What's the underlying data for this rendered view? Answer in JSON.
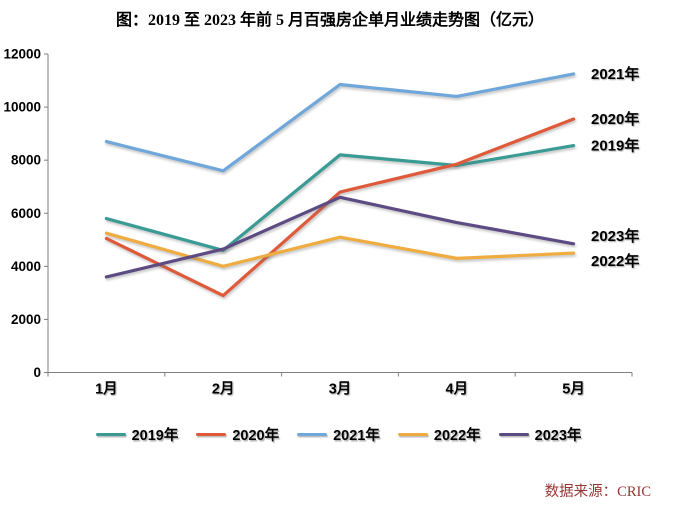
{
  "source": "数据来源：CRIC",
  "source_color": "#963634",
  "chart_data": {
    "type": "line",
    "title": "图：2019 至 2023 年前 5 月百强房企单月业绩走势图（亿元）",
    "categories": [
      "1月",
      "2月",
      "3月",
      "4月",
      "5月"
    ],
    "series": [
      {
        "name": "2019年",
        "color": "#3A9B95",
        "values": [
          5800,
          4600,
          8200,
          7800,
          8550
        ]
      },
      {
        "name": "2020年",
        "color": "#DF5A3A",
        "values": [
          5050,
          2900,
          6800,
          7850,
          9550
        ]
      },
      {
        "name": "2021年",
        "color": "#70A7DB",
        "values": [
          8700,
          7600,
          10850,
          10400,
          11250
        ]
      },
      {
        "name": "2022年",
        "color": "#EFAC41",
        "values": [
          5250,
          4000,
          5100,
          4300,
          4500
        ]
      },
      {
        "name": "2023年",
        "color": "#5D4B84",
        "values": [
          3600,
          4650,
          6600,
          5650,
          4850
        ]
      }
    ],
    "ylim": [
      0,
      12000
    ],
    "yticks": [
      0,
      2000,
      4000,
      6000,
      8000,
      10000,
      12000
    ],
    "xlabel": "",
    "ylabel": "",
    "grid": false,
    "legend_position": "bottom",
    "end_labels_right": [
      "2021年",
      "2020年",
      "2019年",
      "2023年",
      "2022年"
    ]
  }
}
